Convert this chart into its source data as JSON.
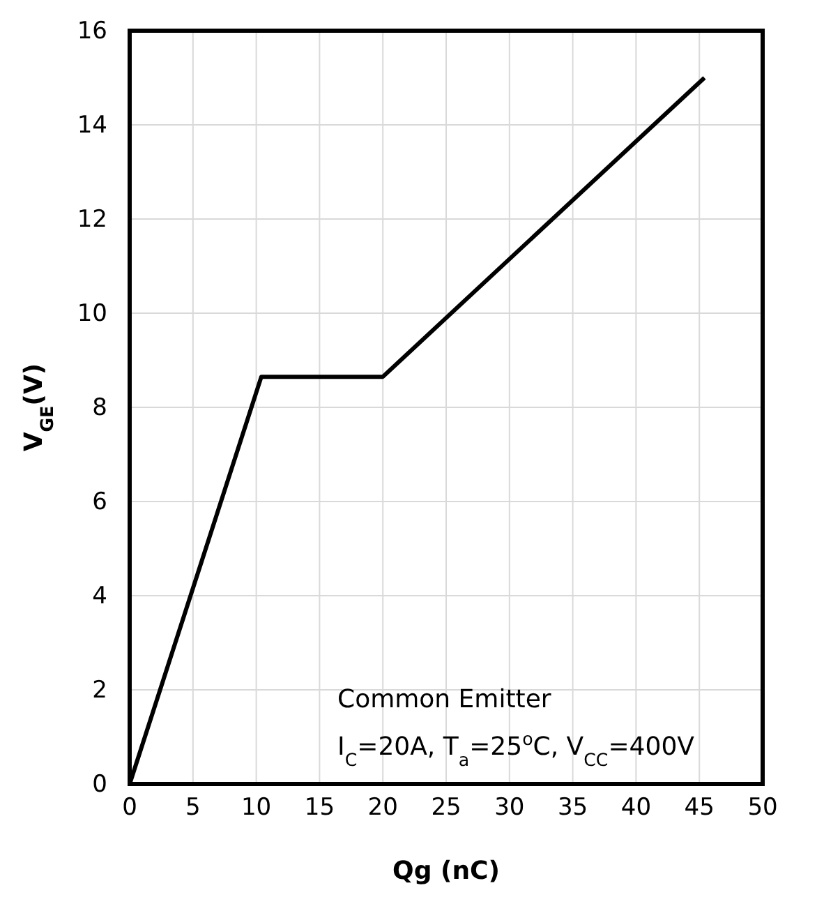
{
  "chart_data": {
    "type": "line",
    "xlabel": "Qg (nC)",
    "ylabel": "V$_{GE}$(V)",
    "x": [
      0,
      10.4,
      20,
      45.4
    ],
    "series": [
      {
        "color": "#000000",
        "values": [
          0,
          8.65,
          8.65,
          15
        ]
      }
    ],
    "xlim": [
      0,
      50
    ],
    "xticks": [
      0,
      5,
      10,
      15,
      20,
      25,
      30,
      35,
      40,
      45,
      50
    ],
    "ylim": [
      0,
      16
    ],
    "yticks": [
      0,
      2,
      4,
      6,
      8,
      10,
      12,
      14,
      16
    ],
    "grid": true,
    "line_style": "solid",
    "annotations": [
      "Common Emitter",
      "I$_{C}$=20A, T$_{a}$=25$^{o}$C, V$_{CC}$=400V"
    ]
  }
}
